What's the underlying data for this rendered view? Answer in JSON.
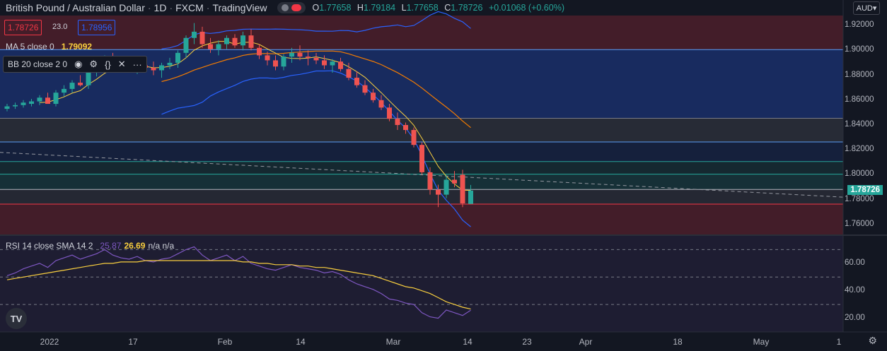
{
  "header": {
    "symbol": "British Pound / Australian Dollar",
    "interval": "1D",
    "exchange": "FXCM",
    "source": "TradingView",
    "open_key": "O",
    "open": "1.77658",
    "high_key": "H",
    "high": "1.79184",
    "low_key": "L",
    "low": "1.77658",
    "close_key": "C",
    "close": "1.78726",
    "change": "+0.01068 (+0.60%)"
  },
  "quote": {
    "bid": "1.78726",
    "spread": "23.0",
    "ask": "1.78956"
  },
  "indicators": {
    "ma_label": "MA 5 close 0",
    "ma_value": "1.79092",
    "bb_label": "BB 20 close 2 0",
    "rsi_label": "RSI 14 close SMA 14 2",
    "rsi_value": "25.87",
    "rsi_sma_value": "26.69",
    "rsi_extra": "n/a n/a"
  },
  "currency_button": "AUD",
  "price_axis": [
    "1.92000",
    "1.90000",
    "1.88000",
    "1.86000",
    "1.84000",
    "1.82000",
    "1.80000",
    "1.78000",
    "1.76000"
  ],
  "last_price_tag": "1.78726",
  "rsi_axis": [
    "60.00",
    "40.00",
    "20.00"
  ],
  "time_axis": [
    "2022",
    "17",
    "Feb",
    "14",
    "Mar",
    "14",
    "23",
    "Apr",
    "18",
    "May",
    "1"
  ],
  "logo_text": "TV",
  "icons": {
    "visibility": "eye-icon",
    "settings": "gear-icon",
    "source": "braces-icon",
    "remove": "close-icon",
    "more": "more-icon"
  },
  "colors": {
    "up": "#26a69a",
    "down": "#ef5350",
    "ma": "#f9cf3f",
    "bb_mid": "#f57c00",
    "bb_band": "#2962ff",
    "rsi": "#7e57c2",
    "rsi_sma": "#f9cf3f"
  },
  "chart_data": {
    "type": "candlestick",
    "price_range": [
      1.752,
      1.928
    ],
    "x_labels": [
      "2022",
      "17",
      "Feb",
      "14",
      "Mar",
      "14",
      "23",
      "Apr",
      "18",
      "May",
      "1"
    ],
    "candles": [
      [
        1.853,
        1.857,
        1.851,
        1.855
      ],
      [
        1.855,
        1.858,
        1.853,
        1.856
      ],
      [
        1.856,
        1.86,
        1.854,
        1.858
      ],
      [
        1.857,
        1.861,
        1.855,
        1.859
      ],
      [
        1.859,
        1.864,
        1.856,
        1.862
      ],
      [
        1.862,
        1.866,
        1.858,
        1.857
      ],
      [
        1.857,
        1.868,
        1.855,
        1.866
      ],
      [
        1.866,
        1.872,
        1.863,
        1.869
      ],
      [
        1.869,
        1.876,
        1.866,
        1.874
      ],
      [
        1.874,
        1.88,
        1.871,
        1.872
      ],
      [
        1.872,
        1.884,
        1.869,
        1.882
      ],
      [
        1.882,
        1.89,
        1.879,
        1.887
      ],
      [
        1.887,
        1.896,
        1.884,
        1.893
      ],
      [
        1.893,
        1.898,
        1.888,
        1.89
      ],
      [
        1.89,
        1.895,
        1.884,
        1.887
      ],
      [
        1.887,
        1.891,
        1.883,
        1.885
      ],
      [
        1.885,
        1.89,
        1.881,
        1.888
      ],
      [
        1.888,
        1.894,
        1.884,
        1.886
      ],
      [
        1.886,
        1.891,
        1.88,
        1.884
      ],
      [
        1.884,
        1.89,
        1.878,
        1.888
      ],
      [
        1.888,
        1.894,
        1.885,
        1.89
      ],
      [
        1.89,
        1.9,
        1.886,
        1.898
      ],
      [
        1.898,
        1.912,
        1.894,
        1.91
      ],
      [
        1.91,
        1.922,
        1.905,
        1.915
      ],
      [
        1.915,
        1.919,
        1.902,
        1.905
      ],
      [
        1.905,
        1.91,
        1.898,
        1.901
      ],
      [
        1.901,
        1.908,
        1.896,
        1.905
      ],
      [
        1.905,
        1.912,
        1.901,
        1.91
      ],
      [
        1.91,
        1.913,
        1.902,
        1.904
      ],
      [
        1.904,
        1.915,
        1.9,
        1.912
      ],
      [
        1.912,
        1.917,
        1.9,
        1.902
      ],
      [
        1.902,
        1.905,
        1.893,
        1.896
      ],
      [
        1.896,
        1.899,
        1.888,
        1.892
      ],
      [
        1.892,
        1.896,
        1.884,
        1.887
      ],
      [
        1.887,
        1.897,
        1.884,
        1.895
      ],
      [
        1.895,
        1.902,
        1.89,
        1.898
      ],
      [
        1.898,
        1.904,
        1.892,
        1.895
      ],
      [
        1.895,
        1.9,
        1.888,
        1.894
      ],
      [
        1.894,
        1.898,
        1.889,
        1.892
      ],
      [
        1.892,
        1.896,
        1.885,
        1.888
      ],
      [
        1.888,
        1.893,
        1.882,
        1.891
      ],
      [
        1.891,
        1.894,
        1.883,
        1.885
      ],
      [
        1.885,
        1.89,
        1.876,
        1.878
      ],
      [
        1.878,
        1.883,
        1.87,
        1.872
      ],
      [
        1.872,
        1.876,
        1.864,
        1.866
      ],
      [
        1.866,
        1.869,
        1.858,
        1.86
      ],
      [
        1.86,
        1.864,
        1.852,
        1.854
      ],
      [
        1.854,
        1.857,
        1.843,
        1.845
      ],
      [
        1.845,
        1.85,
        1.836,
        1.84
      ],
      [
        1.84,
        1.842,
        1.833,
        1.836
      ],
      [
        1.836,
        1.838,
        1.822,
        1.824
      ],
      [
        1.824,
        1.826,
        1.8,
        1.802
      ],
      [
        1.802,
        1.806,
        1.784,
        1.788
      ],
      [
        1.788,
        1.792,
        1.774,
        1.784
      ],
      [
        1.784,
        1.8,
        1.781,
        1.796
      ],
      [
        1.796,
        1.803,
        1.79,
        1.793
      ],
      [
        1.8,
        1.804,
        1.774,
        1.777
      ],
      [
        1.77658,
        1.79184,
        1.77658,
        1.78726
      ]
    ],
    "levels": [
      1.9006,
      1.8454,
      1.8264,
      1.8106,
      1.8005,
      1.7882,
      1.7764
    ],
    "trend_line": [
      [
        0,
        1.818
      ],
      [
        1192,
        1.782
      ]
    ],
    "rsi_range": [
      10,
      80
    ],
    "rsi_levels": [
      70,
      50,
      30
    ],
    "rsi": [
      51,
      53,
      56,
      58,
      60,
      57,
      62,
      64,
      66,
      63,
      65,
      67,
      70,
      66,
      64,
      63,
      65,
      62,
      61,
      63,
      64,
      67,
      70,
      72,
      66,
      62,
      64,
      66,
      62,
      65,
      60,
      58,
      56,
      55,
      57,
      59,
      57,
      56,
      55,
      53,
      54,
      52,
      48,
      45,
      43,
      41,
      38,
      34,
      33,
      31,
      30,
      24,
      21,
      20,
      26,
      24,
      22,
      25.87
    ],
    "rsi_sma": [
      48,
      49,
      50,
      51,
      52,
      53,
      54,
      55,
      56,
      57,
      58,
      59,
      60,
      60,
      61,
      61,
      61,
      62,
      62,
      62,
      62,
      62,
      62,
      62,
      62,
      62,
      62,
      62,
      62,
      61,
      61,
      60,
      60,
      59,
      59,
      59,
      58,
      58,
      57,
      57,
      56,
      55,
      54,
      53,
      52,
      51,
      49,
      47,
      45,
      43,
      42,
      40,
      38,
      35,
      32,
      30,
      28,
      26.69
    ]
  }
}
